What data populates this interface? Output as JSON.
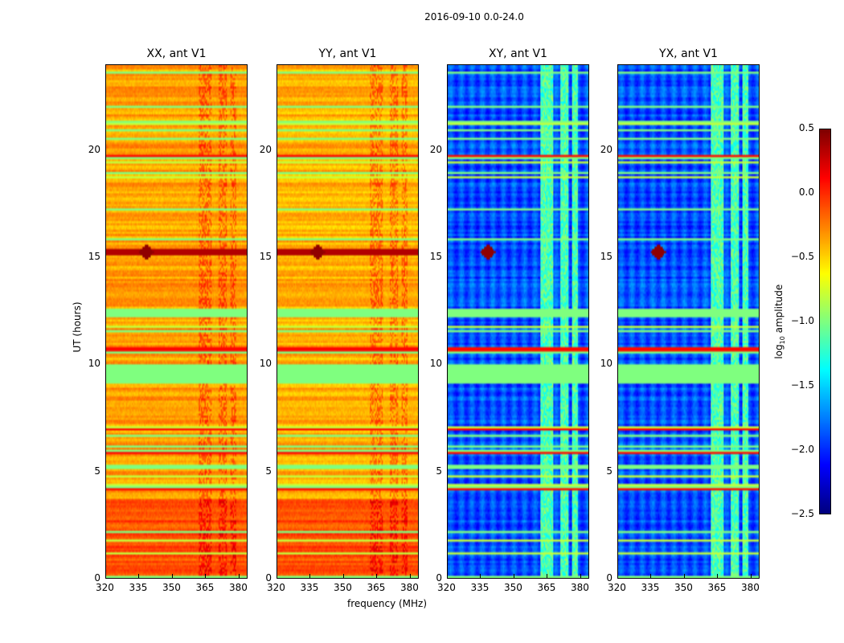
{
  "chart_data": {
    "type": "heatmap",
    "title": "2016-09-10 0.0-24.0",
    "xlabel": "frequency (MHz)",
    "ylabel": "UT (hours)",
    "xlim": [
      320,
      384
    ],
    "ylim": [
      0,
      24
    ],
    "xticks": [
      "320",
      "335",
      "350",
      "365",
      "380"
    ],
    "yticks": [
      "0",
      "5",
      "10",
      "15",
      "20"
    ],
    "colorbar": {
      "label": "log10 amplitude",
      "label_main": "log",
      "label_sub": "10",
      "label_rest": " amplitude",
      "range": [
        -2.5,
        0.5
      ],
      "ticks": [
        "0.5",
        "0.0",
        "−0.5",
        "−1.0",
        "−1.5",
        "−2.0",
        "−2.5"
      ],
      "colormap": "jet"
    },
    "panels": [
      {
        "title": "XX, ant V1",
        "typical_log_amp": -0.35,
        "low_ut_log_amp": -0.1
      },
      {
        "title": "YY, ant V1",
        "typical_log_amp": -0.4,
        "low_ut_log_amp": -0.1
      },
      {
        "title": "XY, ant V1",
        "typical_log_amp": -1.9,
        "low_ut_log_amp": -1.9
      },
      {
        "title": "YX, ant V1",
        "typical_log_amp": -1.9,
        "low_ut_log_amp": -1.9
      }
    ],
    "flagged_ut_bands": [
      [
        9.1,
        10.0
      ],
      [
        12.2,
        12.6
      ]
    ],
    "flagged_value": -1.0,
    "rfi_event": {
      "ut": 15.2,
      "freq_mhz": 338
    }
  }
}
